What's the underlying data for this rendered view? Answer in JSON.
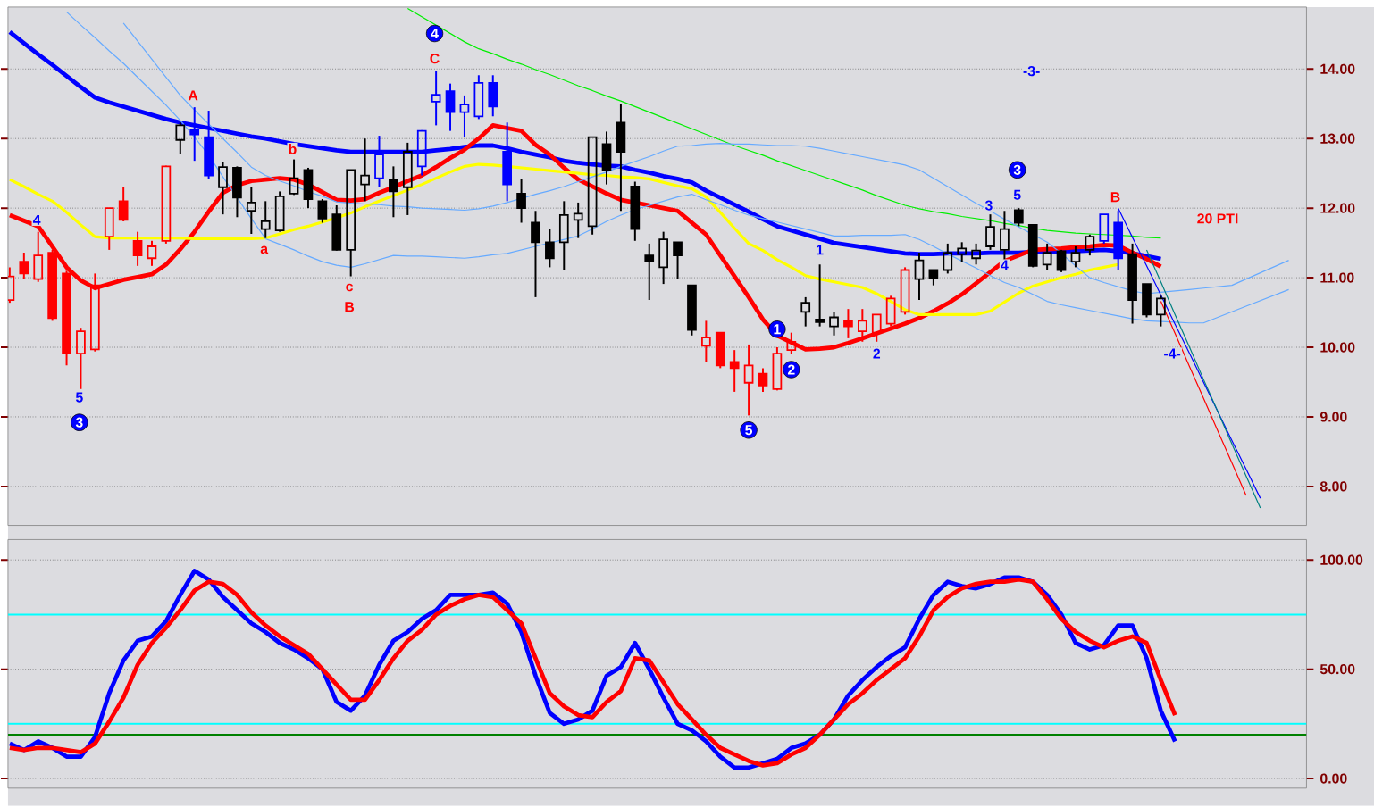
{
  "chart_data": [
    {
      "type": "candlestick",
      "categories": [
        null,
        null,
        null,
        null,
        null,
        null,
        null,
        null,
        null,
        null,
        null,
        null,
        null,
        null,
        null,
        null,
        null,
        null,
        null,
        null,
        null,
        null,
        null,
        null,
        null,
        null,
        null,
        null,
        null,
        null,
        null,
        null,
        null,
        null,
        null,
        null,
        null,
        null,
        null,
        null,
        null,
        null,
        null,
        null,
        null,
        null,
        null,
        null,
        null,
        null,
        null,
        null,
        null,
        null,
        null,
        null,
        null,
        null,
        null,
        null,
        null,
        null,
        null,
        null,
        null,
        null,
        null,
        null,
        null,
        null,
        null,
        null,
        null,
        null,
        null,
        null,
        null,
        null,
        null,
        null,
        null,
        null,
        null,
        null,
        null,
        null,
        null,
        null,
        null,
        null,
        null
      ],
      "ohlc": [
        [
          10.68,
          11.15,
          10.64,
          11.02
        ],
        [
          11.23,
          11.36,
          10.98,
          11.06
        ],
        [
          10.98,
          11.66,
          10.94,
          11.32
        ],
        [
          11.36,
          11.4,
          10.38,
          10.42
        ],
        [
          11.06,
          11.1,
          9.74,
          9.91
        ],
        [
          9.91,
          10.28,
          9.4,
          10.23
        ],
        [
          9.97,
          11.06,
          9.94,
          10.89
        ],
        [
          11.59,
          12.0,
          11.4,
          12.0
        ],
        [
          12.1,
          12.3,
          11.81,
          11.83
        ],
        [
          11.53,
          11.66,
          11.17,
          11.32
        ],
        [
          11.28,
          11.53,
          11.17,
          11.45
        ],
        [
          11.53,
          12.61,
          11.49,
          12.6
        ],
        [
          12.98,
          13.23,
          12.78,
          13.19
        ],
        [
          13.12,
          13.45,
          12.68,
          13.06
        ],
        [
          13.02,
          13.4,
          12.42,
          12.47
        ],
        [
          12.3,
          12.66,
          11.91,
          12.59
        ],
        [
          12.58,
          12.6,
          11.87,
          12.15
        ],
        [
          11.96,
          12.3,
          11.63,
          12.08
        ],
        [
          11.7,
          12.1,
          11.57,
          11.81
        ],
        [
          11.68,
          12.24,
          11.66,
          12.17
        ],
        [
          12.21,
          12.7,
          12.19,
          12.43
        ],
        [
          12.55,
          12.58,
          12.0,
          12.13
        ],
        [
          12.1,
          12.13,
          11.79,
          11.85
        ],
        [
          11.91,
          12.04,
          11.39,
          11.4
        ],
        [
          11.4,
          12.55,
          11.02,
          12.55
        ],
        [
          12.34,
          13.0,
          12.1,
          12.47
        ],
        [
          12.43,
          13.04,
          12.3,
          12.77
        ],
        [
          12.41,
          12.6,
          11.87,
          12.24
        ],
        [
          12.3,
          12.94,
          11.9,
          12.81
        ],
        [
          12.6,
          13.12,
          12.47,
          13.11
        ],
        [
          13.53,
          13.97,
          13.19,
          13.63
        ],
        [
          13.68,
          13.79,
          13.11,
          13.38
        ],
        [
          13.38,
          13.62,
          13.02,
          13.49
        ],
        [
          13.32,
          13.91,
          13.28,
          13.8
        ],
        [
          13.8,
          13.91,
          13.32,
          13.46
        ],
        [
          12.81,
          13.23,
          12.1,
          12.34
        ],
        [
          12.21,
          12.42,
          11.79,
          12.0
        ],
        [
          11.79,
          11.96,
          10.72,
          11.51
        ],
        [
          11.51,
          11.7,
          11.15,
          11.28
        ],
        [
          11.51,
          12.1,
          11.11,
          11.9
        ],
        [
          11.83,
          12.08,
          11.57,
          11.92
        ],
        [
          11.74,
          13.02,
          11.62,
          13.02
        ],
        [
          12.92,
          13.1,
          12.34,
          12.55
        ],
        [
          13.23,
          13.49,
          11.96,
          12.81
        ],
        [
          12.31,
          12.38,
          11.53,
          11.7
        ],
        [
          11.32,
          11.49,
          10.68,
          11.23
        ],
        [
          11.15,
          11.66,
          10.91,
          11.55
        ],
        [
          11.51,
          11.51,
          10.98,
          11.32
        ],
        [
          10.89,
          10.89,
          10.17,
          10.25
        ],
        [
          10.02,
          10.38,
          9.79,
          10.14
        ],
        [
          10.21,
          10.21,
          9.7,
          9.74
        ],
        [
          9.79,
          9.96,
          9.36,
          9.7
        ],
        [
          9.49,
          10.04,
          9.02,
          9.74
        ],
        [
          9.62,
          9.7,
          9.36,
          9.45
        ],
        [
          9.4,
          10.0,
          9.38,
          9.91
        ],
        [
          9.96,
          10.21,
          9.91,
          10.08
        ],
        [
          10.51,
          10.72,
          10.3,
          10.64
        ],
        [
          10.4,
          11.19,
          10.3,
          10.36
        ],
        [
          10.3,
          10.51,
          10.17,
          10.43
        ],
        [
          10.38,
          10.55,
          10.13,
          10.3
        ],
        [
          10.23,
          10.55,
          10.08,
          10.38
        ],
        [
          10.21,
          10.47,
          10.08,
          10.47
        ],
        [
          10.34,
          10.74,
          10.3,
          10.7
        ],
        [
          10.51,
          11.15,
          10.47,
          11.11
        ],
        [
          10.98,
          11.36,
          10.68,
          11.25
        ],
        [
          11.11,
          11.11,
          10.89,
          10.99
        ],
        [
          11.11,
          11.49,
          11.06,
          11.36
        ],
        [
          11.34,
          11.51,
          11.22,
          11.42
        ],
        [
          11.28,
          11.49,
          11.19,
          11.39
        ],
        [
          11.45,
          11.91,
          11.4,
          11.73
        ],
        [
          11.4,
          11.96,
          11.23,
          11.7
        ],
        [
          11.97,
          12.0,
          11.74,
          11.79
        ],
        [
          11.76,
          11.76,
          11.15,
          11.17
        ],
        [
          11.19,
          11.49,
          11.11,
          11.36
        ],
        [
          11.38,
          11.4,
          11.08,
          11.11
        ],
        [
          11.23,
          11.45,
          11.15,
          11.36
        ],
        [
          11.4,
          11.62,
          11.32,
          11.59
        ],
        [
          11.53,
          11.91,
          11.49,
          11.91
        ],
        [
          11.79,
          11.96,
          11.11,
          11.28
        ],
        [
          11.34,
          11.49,
          10.34,
          10.68
        ],
        [
          10.91,
          10.91,
          10.43,
          10.47
        ],
        [
          10.47,
          10.74,
          10.3,
          10.7
        ],
        null,
        null,
        null,
        null,
        null,
        null,
        null,
        null,
        null
      ],
      "colors": [
        "#ff0000",
        "#ff0000",
        "#ff0000",
        "#ff0000",
        "#ff0000",
        "#ff0000",
        "#ff0000",
        "#ff0000",
        "#ff0000",
        "#ff0000",
        "#ff0000",
        "#ff0000",
        "#000000",
        "#0000ff",
        "#0000ff",
        "#000000",
        "#000000",
        "#000000",
        "#000000",
        "#000000",
        "#000000",
        "#000000",
        "#000000",
        "#000000",
        "#000000",
        "#000000",
        "#0000ff",
        "#000000",
        "#000000",
        "#0000ff",
        "#0000ff",
        "#0000ff",
        "#0000ff",
        "#0000ff",
        "#0000ff",
        "#0000ff",
        "#000000",
        "#000000",
        "#000000",
        "#000000",
        "#000000",
        "#000000",
        "#000000",
        "#000000",
        "#000000",
        "#000000",
        "#000000",
        "#000000",
        "#000000",
        "#ff0000",
        "#ff0000",
        "#ff0000",
        "#ff0000",
        "#ff0000",
        "#ff0000",
        "#ff0000",
        "#000000",
        "#000000",
        "#000000",
        "#ff0000",
        "#ff0000",
        "#ff0000",
        "#ff0000",
        "#ff0000",
        "#000000",
        "#000000",
        "#000000",
        "#000000",
        "#000000",
        "#000000",
        "#000000",
        "#000000",
        "#000000",
        "#000000",
        "#000000",
        "#000000",
        "#000000",
        "#0000ff",
        "#0000ff",
        "#000000",
        "#000000",
        "#000000",
        null,
        null,
        null,
        null,
        null,
        null,
        null,
        null,
        null
      ],
      "series": [
        {
          "type": "line",
          "color": "#0000ff",
          "values": [
            14.53,
            14.37,
            14.21,
            14.06,
            13.9,
            13.74,
            13.59,
            13.52,
            13.46,
            13.4,
            13.34,
            13.28,
            13.23,
            13.19,
            13.15,
            13.11,
            13.07,
            13.03,
            13.0,
            12.96,
            12.92,
            12.89,
            12.86,
            12.83,
            12.81,
            12.81,
            12.81,
            12.81,
            12.81,
            12.81,
            12.83,
            12.85,
            12.88,
            12.9,
            12.9,
            12.86,
            12.81,
            12.77,
            12.73,
            12.68,
            12.65,
            12.63,
            12.61,
            12.6,
            12.55,
            12.51,
            12.46,
            12.42,
            12.37,
            12.25,
            12.15,
            12.05,
            11.95,
            11.84,
            11.74,
            11.68,
            11.62,
            11.56,
            11.5,
            11.47,
            11.44,
            11.41,
            11.38,
            11.35,
            11.34,
            11.34,
            11.35,
            11.35,
            11.35,
            11.36,
            11.36,
            11.36,
            11.37,
            11.37,
            11.38,
            11.38,
            11.39,
            11.4,
            11.38,
            11.35,
            11.31,
            11.27,
            null,
            null,
            null,
            null,
            null,
            null,
            null,
            null,
            null
          ]
        },
        {
          "type": "line",
          "color": "#ff0000",
          "values": [
            11.9,
            11.82,
            11.74,
            11.45,
            11.15,
            10.96,
            10.85,
            10.91,
            10.97,
            11.01,
            11.05,
            11.19,
            11.41,
            11.66,
            11.95,
            12.22,
            12.33,
            12.39,
            12.41,
            12.43,
            12.41,
            12.34,
            12.23,
            12.12,
            12.11,
            12.13,
            12.22,
            12.3,
            12.39,
            12.47,
            12.59,
            12.72,
            12.84,
            13.0,
            13.19,
            13.15,
            13.11,
            12.91,
            12.77,
            12.58,
            12.41,
            12.31,
            12.21,
            12.12,
            12.08,
            12.04,
            12.0,
            11.96,
            11.79,
            11.62,
            11.32,
            11.02,
            10.72,
            10.4,
            10.17,
            10.07,
            9.97,
            9.98,
            10.0,
            10.06,
            10.13,
            10.2,
            10.27,
            10.34,
            10.42,
            10.52,
            10.63,
            10.76,
            10.92,
            11.08,
            11.24,
            11.32,
            11.4,
            11.41,
            11.42,
            11.44,
            11.45,
            11.47,
            11.46,
            11.36,
            11.27,
            11.16,
            null,
            null,
            null,
            null,
            null,
            null,
            null,
            null,
            null
          ]
        },
        {
          "type": "line",
          "color": "#ffff00",
          "values": [
            12.41,
            12.31,
            12.2,
            12.1,
            11.94,
            11.76,
            11.59,
            11.57,
            11.57,
            11.57,
            11.57,
            11.57,
            11.57,
            11.56,
            11.56,
            11.56,
            11.56,
            11.56,
            11.57,
            11.63,
            11.69,
            11.74,
            11.8,
            11.86,
            11.93,
            12.02,
            12.1,
            12.18,
            12.26,
            12.34,
            12.43,
            12.52,
            12.6,
            12.63,
            12.62,
            12.6,
            12.58,
            12.56,
            12.54,
            12.52,
            12.5,
            12.48,
            12.47,
            12.45,
            12.44,
            12.42,
            12.37,
            12.32,
            12.28,
            12.16,
            11.94,
            11.71,
            11.49,
            11.39,
            11.26,
            11.15,
            11.03,
            10.98,
            10.94,
            10.9,
            10.86,
            10.77,
            10.66,
            10.54,
            10.47,
            10.47,
            10.47,
            10.47,
            10.47,
            10.52,
            10.65,
            10.78,
            10.88,
            10.94,
            11.0,
            11.05,
            11.11,
            11.15,
            11.19,
            null,
            null,
            null,
            null,
            null,
            null,
            null,
            null,
            null,
            null,
            null,
            null
          ]
        },
        {
          "type": "line",
          "color": "#00ee00",
          "values": [
            null,
            null,
            null,
            null,
            null,
            null,
            null,
            null,
            null,
            null,
            null,
            null,
            null,
            null,
            null,
            null,
            null,
            null,
            null,
            null,
            null,
            null,
            null,
            null,
            null,
            null,
            null,
            null,
            14.87,
            14.75,
            14.63,
            14.51,
            14.39,
            14.29,
            14.22,
            14.14,
            14.07,
            13.99,
            13.92,
            13.84,
            13.76,
            13.69,
            13.61,
            13.54,
            13.46,
            13.38,
            13.3,
            13.22,
            13.14,
            13.06,
            12.98,
            12.9,
            12.83,
            12.76,
            12.68,
            12.61,
            12.54,
            12.47,
            12.4,
            12.33,
            12.26,
            12.18,
            12.11,
            12.04,
            11.99,
            11.95,
            11.92,
            11.88,
            11.85,
            11.82,
            11.78,
            11.75,
            11.71,
            11.68,
            11.66,
            11.64,
            11.63,
            11.62,
            11.61,
            11.6,
            11.58,
            11.57,
            null,
            null,
            null,
            null,
            null,
            null,
            null,
            null,
            null
          ]
        },
        {
          "type": "line",
          "color": "#66aaff",
          "values": [
            null,
            null,
            null,
            null,
            null,
            null,
            null,
            null,
            14.66,
            14.4,
            14.14,
            13.88,
            13.62,
            13.41,
            13.21,
            13.0,
            12.8,
            12.59,
            12.47,
            12.39,
            12.32,
            12.24,
            12.17,
            12.09,
            12.07,
            12.06,
            12.05,
            12.03,
            12.02,
            12.0,
            11.99,
            11.98,
            11.97,
            11.99,
            12.03,
            12.08,
            12.14,
            12.2,
            12.25,
            12.31,
            12.38,
            12.45,
            12.52,
            12.6,
            12.67,
            12.74,
            12.82,
            12.89,
            12.9,
            12.92,
            12.93,
            12.92,
            12.92,
            12.91,
            12.9,
            12.9,
            12.89,
            12.86,
            12.82,
            12.78,
            12.74,
            12.7,
            12.66,
            12.62,
            12.55,
            12.43,
            12.31,
            12.19,
            12.07,
            11.96,
            11.84,
            11.73,
            11.62,
            11.51,
            11.35,
            11.17,
            11.0,
            10.93,
            10.87,
            10.81,
            10.77,
            10.79,
            10.81,
            10.83,
            10.85,
            10.87,
            10.89,
            10.98,
            11.07,
            11.16,
            11.25
          ]
        },
        {
          "type": "line",
          "color": "#66aaff",
          "values": [
            null,
            null,
            null,
            null,
            14.82,
            14.63,
            14.45,
            14.26,
            14.08,
            13.88,
            13.68,
            13.48,
            13.26,
            13.02,
            12.76,
            12.45,
            12.15,
            11.85,
            11.56,
            11.48,
            11.4,
            11.31,
            11.23,
            11.18,
            11.15,
            11.2,
            11.26,
            11.32,
            11.31,
            11.31,
            11.3,
            11.29,
            11.28,
            11.3,
            11.33,
            11.35,
            11.4,
            11.45,
            11.5,
            11.55,
            11.6,
            11.7,
            11.81,
            11.9,
            11.98,
            12.04,
            12.1,
            12.16,
            12.2,
            12.12,
            12.05,
            11.97,
            11.9,
            11.85,
            11.8,
            11.75,
            11.7,
            11.65,
            11.6,
            11.6,
            11.61,
            11.61,
            11.61,
            11.62,
            11.55,
            11.45,
            11.34,
            11.24,
            11.14,
            11.03,
            10.93,
            10.86,
            10.76,
            10.66,
            10.61,
            10.57,
            10.53,
            10.49,
            10.45,
            10.41,
            10.38,
            10.37,
            10.36,
            10.35,
            10.35,
            10.43,
            10.51,
            10.59,
            10.67,
            10.75,
            10.83
          ]
        },
        {
          "type": "line",
          "color": "#0000ff",
          "values": [
            null,
            null,
            null,
            null,
            null,
            null,
            null,
            null,
            null,
            null,
            null,
            null,
            null,
            null,
            null,
            null,
            null,
            null,
            null,
            null,
            null,
            null,
            null,
            null,
            null,
            null,
            null,
            null,
            null,
            null,
            null,
            null,
            null,
            null,
            null,
            null,
            null,
            null,
            null,
            null,
            null,
            null,
            null,
            null,
            null,
            null,
            null,
            null,
            null,
            null,
            null,
            null,
            null,
            null,
            null,
            null,
            null,
            null,
            null,
            null,
            null,
            null,
            null,
            null,
            null,
            null,
            null,
            null,
            null,
            null,
            null,
            null,
            null,
            null,
            null,
            null,
            null,
            null,
            12.0,
            11.58,
            11.17,
            10.75,
            10.33,
            9.92,
            9.5,
            9.08,
            8.66,
            8.25,
            7.83,
            null,
            null
          ]
        },
        {
          "type": "line",
          "color": "#008080",
          "values": [
            null,
            null,
            null,
            null,
            null,
            null,
            null,
            null,
            null,
            null,
            null,
            null,
            null,
            null,
            null,
            null,
            null,
            null,
            null,
            null,
            null,
            null,
            null,
            null,
            null,
            null,
            null,
            null,
            null,
            null,
            null,
            null,
            null,
            null,
            null,
            null,
            null,
            null,
            null,
            null,
            null,
            null,
            null,
            null,
            null,
            null,
            null,
            null,
            null,
            null,
            null,
            null,
            null,
            null,
            null,
            null,
            null,
            null,
            null,
            null,
            null,
            null,
            null,
            null,
            null,
            null,
            null,
            null,
            null,
            null,
            null,
            null,
            null,
            null,
            null,
            null,
            null,
            null,
            null,
            null,
            11.4,
            10.94,
            10.47,
            10.01,
            9.54,
            9.08,
            8.61,
            8.15,
            7.69,
            null,
            null
          ]
        },
        {
          "type": "line",
          "color": "#ff0000",
          "values": [
            null,
            null,
            null,
            null,
            null,
            null,
            null,
            null,
            null,
            null,
            null,
            null,
            null,
            null,
            null,
            null,
            null,
            null,
            null,
            null,
            null,
            null,
            null,
            null,
            null,
            null,
            null,
            null,
            null,
            null,
            null,
            null,
            null,
            null,
            null,
            null,
            null,
            null,
            null,
            null,
            null,
            null,
            null,
            null,
            null,
            null,
            null,
            null,
            null,
            null,
            null,
            null,
            null,
            null,
            null,
            null,
            null,
            null,
            null,
            null,
            null,
            null,
            null,
            null,
            null,
            null,
            null,
            null,
            null,
            null,
            null,
            null,
            null,
            null,
            null,
            null,
            null,
            null,
            null,
            null,
            null,
            10.66,
            10.2,
            9.73,
            9.27,
            8.8,
            8.34,
            7.87,
            null,
            null,
            null
          ]
        }
      ],
      "ylim": [
        7.44,
        14.89
      ],
      "yticks": [
        {
          "value": 8,
          "label": "8.00"
        },
        {
          "value": 9,
          "label": "9.00"
        },
        {
          "value": 10,
          "label": "10.00"
        },
        {
          "value": 11,
          "label": "11.00"
        },
        {
          "value": 12,
          "label": "12.00"
        },
        {
          "value": 13,
          "label": "13.00"
        },
        {
          "value": 14,
          "label": "14.00"
        }
      ],
      "tick_labels": "y",
      "grid": "y",
      "annotations": [
        "4",
        "5",
        "3",
        "A",
        "a",
        "b",
        "c",
        "B",
        "C",
        "4",
        "1",
        "2",
        "5",
        "1",
        "2",
        "3",
        "5",
        "3",
        "-3-",
        "4",
        "B",
        "-4-",
        "20 PTI"
      ]
    },
    {
      "type": "line",
      "categories": [
        null,
        null,
        null,
        null,
        null,
        null,
        null,
        null,
        null,
        null,
        null,
        null,
        null,
        null,
        null,
        null,
        null,
        null,
        null,
        null,
        null,
        null,
        null,
        null,
        null,
        null,
        null,
        null,
        null,
        null,
        null,
        null,
        null,
        null,
        null,
        null,
        null,
        null,
        null,
        null,
        null,
        null,
        null,
        null,
        null,
        null,
        null,
        null,
        null,
        null,
        null,
        null,
        null,
        null,
        null,
        null,
        null,
        null,
        null,
        null,
        null,
        null,
        null,
        null,
        null,
        null,
        null,
        null,
        null,
        null,
        null,
        null,
        null,
        null,
        null,
        null,
        null,
        null,
        null,
        null,
        null,
        null,
        null,
        null,
        null,
        null,
        null,
        null,
        null,
        null,
        null
      ],
      "series": [
        {
          "color": "#0000ff",
          "values": [
            16,
            13,
            17,
            14,
            10,
            10,
            19,
            39,
            54,
            63,
            65,
            72,
            84,
            95,
            91,
            83,
            77,
            71,
            67,
            62,
            59,
            55,
            50,
            35,
            31,
            38,
            52,
            63,
            67,
            73,
            77,
            84,
            84,
            84,
            85,
            80,
            67,
            47,
            30,
            25,
            27,
            31,
            47,
            51,
            62,
            50,
            37,
            25,
            22,
            17,
            10,
            5,
            5,
            7,
            9,
            14,
            16,
            20,
            27,
            38,
            45,
            51,
            56,
            60,
            73,
            84,
            90,
            88,
            87,
            89,
            92,
            92,
            90,
            84,
            75,
            62,
            59,
            61,
            70,
            70,
            55,
            31,
            17,
            null,
            null,
            null,
            null,
            null,
            null,
            null,
            null
          ]
        },
        {
          "color": "#ff0000",
          "values": [
            14,
            13,
            14,
            14,
            13,
            12,
            16,
            26,
            37,
            52,
            62,
            69,
            77,
            86,
            90,
            89,
            84,
            76,
            70,
            65,
            61,
            57,
            50,
            43,
            36,
            36,
            45,
            55,
            63,
            68,
            75,
            79,
            82,
            84,
            83,
            77,
            71,
            55,
            39,
            33,
            29,
            28,
            35,
            40,
            55,
            54,
            44,
            34,
            27,
            20,
            14,
            11,
            8,
            6,
            7,
            11,
            14,
            20,
            27,
            34,
            39,
            45,
            50,
            55,
            65,
            77,
            83,
            87,
            89,
            90,
            90,
            91,
            90,
            82,
            73,
            67,
            63,
            60,
            63,
            65,
            62,
            45,
            29,
            null,
            null,
            null,
            null,
            null,
            null,
            null,
            null
          ]
        }
      ],
      "ylim": [
        -4.4,
        109.3
      ],
      "yticks": [
        {
          "value": 0,
          "label": "0.00"
        },
        {
          "value": 50,
          "label": "50.00"
        },
        {
          "value": 100,
          "label": "100.00"
        }
      ],
      "tick_labels": "y",
      "grid": "y",
      "ref_lines": [
        {
          "axis": "y",
          "value": 75,
          "color": "#00ffff"
        },
        {
          "axis": "y",
          "value": 25,
          "color": "#00ffff"
        },
        {
          "axis": "y",
          "value": 20,
          "color": "#008000"
        }
      ]
    }
  ]
}
